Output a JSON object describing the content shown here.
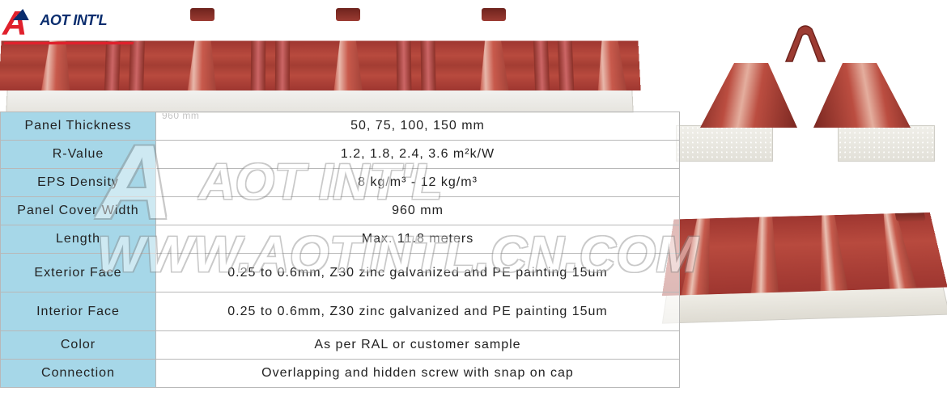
{
  "logo": {
    "mark": "A",
    "text": "AOT INT'L"
  },
  "dimension_label": "960 mm",
  "watermark": {
    "brand": "AOT INT'L",
    "url": "WWW.AOTINTL.CN.COM"
  },
  "panel_colors": {
    "sheet_dark": "#9e3630",
    "sheet_light": "#b84a3e",
    "rib_highlight": "#e8b8ab",
    "foam": "#efede6",
    "foam_border": "#cfcdc6"
  },
  "table": {
    "header_bg": "#a6d7e8",
    "border_color": "#b8b8b8",
    "cell_bg": "rgba(255,255,255,0.65)",
    "rows": [
      {
        "label": "Panel Thickness",
        "value": "50, 75, 100, 150 mm"
      },
      {
        "label": "R-Value",
        "value": "1.2, 1.8, 2.4, 3.6 m²k/W"
      },
      {
        "label": "EPS Density",
        "value": "8 kg/m³ - 12 kg/m³"
      },
      {
        "label": "Panel Cover Width",
        "value": "960 mm"
      },
      {
        "label": "Length",
        "value": "Max. 11.8 meters"
      },
      {
        "label": "Exterior Face",
        "value": "0.25 to 0.6mm, Z30 zinc galvanized and PE painting 15um",
        "tall": true
      },
      {
        "label": "Interior Face",
        "value": "0.25 to 0.6mm, Z30 zinc galvanized and PE painting 15um",
        "tall": true
      },
      {
        "label": "Color",
        "value": "As per RAL or customer sample"
      },
      {
        "label": "Connection",
        "value": "Overlapping and hidden screw with snap on cap"
      }
    ]
  }
}
